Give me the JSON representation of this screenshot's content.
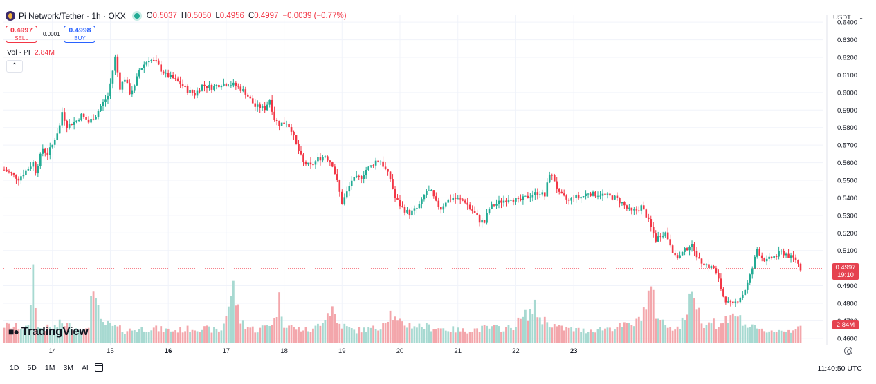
{
  "header": {
    "symbol": "Pi Network/Tether · 1h · OKX",
    "open_label": "O",
    "open_value": "0.5037",
    "high_label": "H",
    "high_value": "0.5050",
    "low_label": "L",
    "low_value": "0.4956",
    "close_label": "C",
    "close_value": "0.4997",
    "change": "−0.0039 (−0.77%)"
  },
  "trade": {
    "sell_price": "0.4997",
    "sell_label": "SELL",
    "spread": "0.0001",
    "buy_price": "0.4998",
    "buy_label": "BUY"
  },
  "volume_legend": {
    "label": "Vol · PI",
    "value": "2.84M"
  },
  "currency_selector": {
    "value": "USDT",
    "icon": "chevron-down-icon"
  },
  "price_label": {
    "price": "0.4997",
    "countdown": "19:10"
  },
  "volume_label": "2.84M",
  "brand": "TradingView",
  "timeframes": [
    "1D",
    "5D",
    "1M",
    "3M",
    "All"
  ],
  "clock": "11:40:50 UTC",
  "colors": {
    "up": "#22ab94",
    "down": "#f23645",
    "vol_up": "#a7d9d1",
    "vol_down": "#f3a6ab"
  },
  "chart_data": {
    "type": "candlestick",
    "interval": "1h",
    "y_ticks": [
      "0.6400",
      "0.6300",
      "0.6200",
      "0.6100",
      "0.6000",
      "0.5900",
      "0.5800",
      "0.5700",
      "0.5600",
      "0.5500",
      "0.5400",
      "0.5300",
      "0.5200",
      "0.5100",
      "0.4900",
      "0.4800",
      "0.4700",
      "0.4600"
    ],
    "ylim": [
      0.456,
      0.644
    ],
    "x_ticks": [
      "14",
      "15",
      "16",
      "17",
      "18",
      "19",
      "20",
      "21",
      "22",
      "23"
    ],
    "current_price": 0.4997,
    "anchors": [
      [
        0,
        0.556
      ],
      [
        6,
        0.551
      ],
      [
        10,
        0.557
      ],
      [
        12,
        0.56
      ],
      [
        13,
        0.555
      ],
      [
        16,
        0.568
      ],
      [
        18,
        0.565
      ],
      [
        20,
        0.57
      ],
      [
        23,
        0.581
      ],
      [
        24,
        0.589
      ],
      [
        26,
        0.581
      ],
      [
        30,
        0.584
      ],
      [
        32,
        0.587
      ],
      [
        35,
        0.583
      ],
      [
        38,
        0.587
      ],
      [
        40,
        0.592
      ],
      [
        43,
        0.598
      ],
      [
        44,
        0.605
      ],
      [
        46,
        0.62
      ],
      [
        48,
        0.603
      ],
      [
        50,
        0.608
      ],
      [
        52,
        0.6
      ],
      [
        54,
        0.603
      ],
      [
        56,
        0.613
      ],
      [
        58,
        0.616
      ],
      [
        60,
        0.619
      ],
      [
        63,
        0.617
      ],
      [
        65,
        0.613
      ],
      [
        67,
        0.61
      ],
      [
        70,
        0.608
      ],
      [
        73,
        0.605
      ],
      [
        76,
        0.601
      ],
      [
        79,
        0.599
      ],
      [
        82,
        0.604
      ],
      [
        86,
        0.603
      ],
      [
        90,
        0.605
      ],
      [
        93,
        0.605
      ],
      [
        96,
        0.604
      ],
      [
        100,
        0.6
      ],
      [
        104,
        0.592
      ],
      [
        108,
        0.591
      ],
      [
        110,
        0.596
      ],
      [
        112,
        0.585
      ],
      [
        114,
        0.582
      ],
      [
        117,
        0.583
      ],
      [
        119,
        0.579
      ],
      [
        121,
        0.57
      ],
      [
        124,
        0.56
      ],
      [
        127,
        0.558
      ],
      [
        130,
        0.562
      ],
      [
        133,
        0.564
      ],
      [
        136,
        0.559
      ],
      [
        138,
        0.549
      ],
      [
        140,
        0.537
      ],
      [
        142,
        0.543
      ],
      [
        144,
        0.55
      ],
      [
        146,
        0.551
      ],
      [
        148,
        0.552
      ],
      [
        150,
        0.556
      ],
      [
        152,
        0.558
      ],
      [
        154,
        0.561
      ],
      [
        156,
        0.561
      ],
      [
        158,
        0.556
      ],
      [
        160,
        0.551
      ],
      [
        162,
        0.54
      ],
      [
        164,
        0.536
      ],
      [
        166,
        0.533
      ],
      [
        168,
        0.531
      ],
      [
        171,
        0.534
      ],
      [
        173,
        0.538
      ],
      [
        175,
        0.544
      ],
      [
        177,
        0.543
      ],
      [
        179,
        0.537
      ],
      [
        181,
        0.534
      ],
      [
        183,
        0.538
      ],
      [
        186,
        0.54
      ],
      [
        188,
        0.539
      ],
      [
        191,
        0.538
      ],
      [
        193,
        0.534
      ],
      [
        195,
        0.531
      ],
      [
        197,
        0.527
      ],
      [
        199,
        0.526
      ],
      [
        201,
        0.534
      ],
      [
        203,
        0.536
      ],
      [
        206,
        0.538
      ],
      [
        210,
        0.54
      ],
      [
        213,
        0.538
      ],
      [
        216,
        0.54
      ],
      [
        219,
        0.542
      ],
      [
        222,
        0.543
      ],
      [
        224,
        0.541
      ],
      [
        226,
        0.554
      ],
      [
        228,
        0.55
      ],
      [
        230,
        0.542
      ],
      [
        232,
        0.54
      ],
      [
        234,
        0.538
      ],
      [
        236,
        0.541
      ],
      [
        238,
        0.54
      ],
      [
        240,
        0.541
      ],
      [
        242,
        0.543
      ],
      [
        244,
        0.542
      ],
      [
        247,
        0.542
      ],
      [
        250,
        0.541
      ],
      [
        253,
        0.54
      ],
      [
        256,
        0.537
      ],
      [
        258,
        0.534
      ],
      [
        260,
        0.532
      ],
      [
        262,
        0.533
      ],
      [
        264,
        0.535
      ],
      [
        266,
        0.53
      ],
      [
        268,
        0.523
      ],
      [
        270,
        0.516
      ],
      [
        272,
        0.519
      ],
      [
        274,
        0.52
      ],
      [
        276,
        0.514
      ],
      [
        278,
        0.506
      ],
      [
        280,
        0.507
      ],
      [
        282,
        0.51
      ],
      [
        284,
        0.513
      ],
      [
        286,
        0.511
      ],
      [
        288,
        0.504
      ],
      [
        290,
        0.503
      ],
      [
        292,
        0.501
      ],
      [
        294,
        0.5
      ],
      [
        296,
        0.493
      ],
      [
        298,
        0.484
      ],
      [
        300,
        0.48
      ],
      [
        302,
        0.479
      ],
      [
        304,
        0.482
      ],
      [
        306,
        0.485
      ],
      [
        308,
        0.491
      ],
      [
        310,
        0.5
      ],
      [
        312,
        0.511
      ],
      [
        314,
        0.506
      ],
      [
        316,
        0.504
      ],
      [
        318,
        0.506
      ],
      [
        320,
        0.507
      ],
      [
        322,
        0.509
      ],
      [
        324,
        0.508
      ],
      [
        326,
        0.506
      ],
      [
        328,
        0.505
      ],
      [
        330,
        0.4997
      ]
    ],
    "volume_ylim": [
      0,
      30
    ],
    "volume_anchors": [
      [
        0,
        7
      ],
      [
        10,
        6
      ],
      [
        12,
        29
      ],
      [
        14,
        6
      ],
      [
        20,
        6
      ],
      [
        24,
        8
      ],
      [
        30,
        6
      ],
      [
        35,
        5
      ],
      [
        36,
        20
      ],
      [
        37,
        26
      ],
      [
        38,
        17
      ],
      [
        40,
        8
      ],
      [
        44,
        7
      ],
      [
        50,
        5
      ],
      [
        60,
        6
      ],
      [
        70,
        5
      ],
      [
        80,
        6
      ],
      [
        90,
        5
      ],
      [
        95,
        22
      ],
      [
        96,
        17
      ],
      [
        98,
        9
      ],
      [
        100,
        7
      ],
      [
        105,
        5
      ],
      [
        112,
        9
      ],
      [
        114,
        17
      ],
      [
        116,
        8
      ],
      [
        120,
        6
      ],
      [
        128,
        5
      ],
      [
        134,
        12
      ],
      [
        136,
        14
      ],
      [
        138,
        8
      ],
      [
        145,
        5
      ],
      [
        155,
        6
      ],
      [
        160,
        12
      ],
      [
        163,
        8
      ],
      [
        170,
        7
      ],
      [
        180,
        6
      ],
      [
        190,
        5
      ],
      [
        200,
        6
      ],
      [
        210,
        6
      ],
      [
        220,
        14
      ],
      [
        222,
        10
      ],
      [
        230,
        6
      ],
      [
        240,
        5
      ],
      [
        250,
        6
      ],
      [
        258,
        7
      ],
      [
        262,
        8
      ],
      [
        266,
        15
      ],
      [
        268,
        22
      ],
      [
        270,
        12
      ],
      [
        274,
        7
      ],
      [
        280,
        6
      ],
      [
        286,
        21
      ],
      [
        288,
        12
      ],
      [
        290,
        8
      ],
      [
        294,
        9
      ],
      [
        296,
        6
      ],
      [
        302,
        13
      ],
      [
        306,
        8
      ],
      [
        310,
        6
      ],
      [
        314,
        5
      ],
      [
        320,
        5
      ],
      [
        326,
        5
      ],
      [
        330,
        8
      ]
    ]
  }
}
